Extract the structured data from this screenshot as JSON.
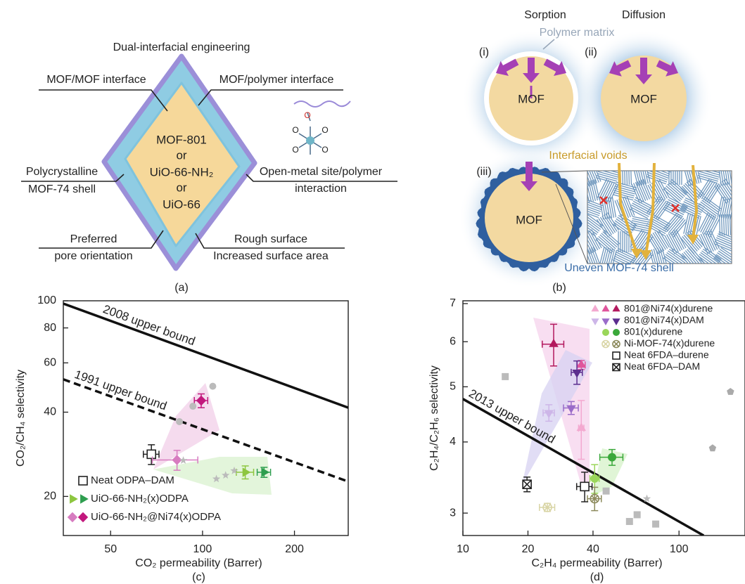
{
  "panel_a": {
    "title": "Dual-interfacial engineering",
    "core": [
      "MOF-801",
      "or",
      "UiO-66-NH₂",
      "or",
      "UiO-66"
    ],
    "callouts": [
      [
        "MOF/MOF interface"
      ],
      [
        "MOF/polymer interface"
      ],
      [
        "Polycrystalline",
        "MOF-74 shell"
      ],
      [
        "Open-metal site/polymer",
        "interaction"
      ],
      [
        "Preferred",
        "pore orientation"
      ],
      [
        "Rough surface",
        "Increased surface area"
      ]
    ],
    "atoms": [
      "O",
      "O",
      "O",
      "O",
      "O"
    ],
    "caption": "(a)"
  },
  "panel_b": {
    "headers": [
      "Sorption",
      "Diffusion"
    ],
    "matrix_label": "Polymer matrix",
    "cases": [
      "(i)",
      "(ii)",
      "(iii)"
    ],
    "core_labels": [
      "MOF",
      "MOF",
      "MOF"
    ],
    "voids_label": "Interfacial voids",
    "shell_label": "Uneven MOF-74 shell",
    "caption": "(b)"
  },
  "chart_data": [
    {
      "type": "scatter",
      "caption": "(c)",
      "xlabel": "CO₂ permeability (Barrer)",
      "ylabel": "CO₂/CH₄ selectivity",
      "xlog": true,
      "ylog": true,
      "xlim": [
        35,
        300
      ],
      "ylim": [
        14.5,
        100
      ],
      "xticks": [
        50,
        100,
        200
      ],
      "yticks": [
        20,
        40,
        60,
        80,
        100
      ],
      "bounds": [
        {
          "label": "2008 upper bound",
          "x": [
            35,
            300
          ],
          "values": [
            97.7,
            41.5
          ],
          "style": "solid"
        },
        {
          "label": "1991 upper bound",
          "x": [
            35,
            300
          ],
          "values": [
            52.4,
            22.6
          ],
          "style": "dashed"
        }
      ],
      "series": [
        {
          "name": "Neat ODPA–DAM",
          "marker": "square-open",
          "colors": [
            "#222222"
          ],
          "x": [
            68
          ],
          "values": [
            28.3
          ],
          "xerr": [
            4
          ],
          "yerr": [
            2.3
          ]
        },
        {
          "name": "UiO-66-NH₂(x)ODPA",
          "marker": "triangle-right",
          "colors": [
            "#8dc63f",
            "#2e9e4f"
          ],
          "x": [
            138,
            159
          ],
          "values": [
            24.4,
            24.4
          ],
          "xerr": [
            9,
            8
          ],
          "yerr": [
            1.3,
            1.0
          ]
        },
        {
          "name": "UiO-66-NH₂@Ni74(x)ODPA",
          "marker": "diamond",
          "colors": [
            "#d77cc0",
            "#c2187d"
          ],
          "x": [
            82.5,
            99
          ],
          "values": [
            27,
            44
          ],
          "xerr": [
            14,
            5
          ],
          "yerr": [
            2.2,
            2.5
          ]
        },
        {
          "marker": "circle",
          "color": "#bbbbbb",
          "x": [
            108,
            93,
            84
          ],
          "values": [
            49.5,
            42,
            37
          ]
        },
        {
          "marker": "star",
          "color": "#bbbbbb",
          "x": [
            86.5,
            111,
            119,
            127
          ],
          "values": [
            26.9,
            23.1,
            23.8,
            24.7
          ]
        }
      ]
    },
    {
      "type": "scatter",
      "caption": "(d)",
      "xlabel": "C₂H₄ permeability (Barrer)",
      "ylabel": "C₂H₄/C₂H₆ selectivity",
      "xlog": true,
      "ylog": true,
      "xlim": [
        10,
        202
      ],
      "ylim": [
        2.74,
        7.08
      ],
      "xticks": [
        10,
        20,
        40,
        100
      ],
      "yticks": [
        3,
        4,
        5,
        6,
        7
      ],
      "bounds": [
        {
          "label": "2013 upper bound",
          "x": [
            10,
            130
          ],
          "values": [
            4.76,
            2.74
          ],
          "style": "solid"
        }
      ],
      "series": [
        {
          "name": "801@Ni74(x)durene",
          "marker": "triangle-up",
          "colors": [
            "#f3a9d0",
            "#e0559c",
            "#b3195e"
          ],
          "x": [
            35.3,
            35.3,
            26.3
          ],
          "values": [
            4.23,
            5.46,
            5.94
          ],
          "xerr": [
            1,
            1.5,
            3
          ],
          "yerr": [
            0.5,
            0.1,
            0.5
          ]
        },
        {
          "name": "801@Ni74(x)DAM",
          "marker": "triangle-down",
          "colors": [
            "#cdb6e8",
            "#9a6cc9",
            "#5b2d8e"
          ],
          "x": [
            25,
            31.7,
            33.7
          ],
          "values": [
            4.5,
            4.59,
            5.3
          ],
          "xerr": [
            1.5,
            2.5,
            2
          ],
          "yerr": [
            0.15,
            0.12,
            0.25
          ]
        },
        {
          "name": "801(x)durene",
          "marker": "circle",
          "colors": [
            "#9ad65a",
            "#3aa83a"
          ],
          "x": [
            40.7,
            49
          ],
          "values": [
            3.45,
            3.76
          ],
          "xerr": [
            2,
            6
          ],
          "yerr": [
            0.2,
            0.12
          ]
        },
        {
          "name": "Ni-MOF-74(x)durene",
          "marker": "hatch",
          "colors": [
            "#d9d5a6",
            "#8c8a5c"
          ],
          "x": [
            24.6,
            40.7
          ],
          "values": [
            3.07,
            3.18
          ],
          "xerr": [
            2,
            3
          ],
          "yerr": [
            0.05,
            0.15
          ]
        },
        {
          "name": "Neat 6FDA–durene",
          "marker": "square-open",
          "colors": [
            "#222222"
          ],
          "x": [
            36.6
          ],
          "values": [
            3.34
          ],
          "xerr": [
            3
          ],
          "yerr": [
            0.2
          ]
        },
        {
          "name": "Neat 6FDA–DAM",
          "marker": "square-x",
          "colors": [
            "#222222"
          ],
          "x": [
            19.8
          ],
          "values": [
            3.37
          ],
          "xerr": [
            0.8
          ],
          "yerr": [
            0.1
          ]
        },
        {
          "marker": "square",
          "color": "#bbbbbb",
          "x": [
            15.7,
            46,
            59,
            64,
            78
          ],
          "values": [
            5.21,
            3.28,
            2.9,
            2.98,
            2.87
          ]
        },
        {
          "marker": "pentagon",
          "color": "#aaaaaa",
          "x": [
            143,
            173
          ],
          "values": [
            3.9,
            4.9
          ]
        },
        {
          "marker": "star",
          "color": "#bbbbbb",
          "x": [
            71
          ],
          "values": [
            3.18
          ]
        }
      ]
    }
  ]
}
